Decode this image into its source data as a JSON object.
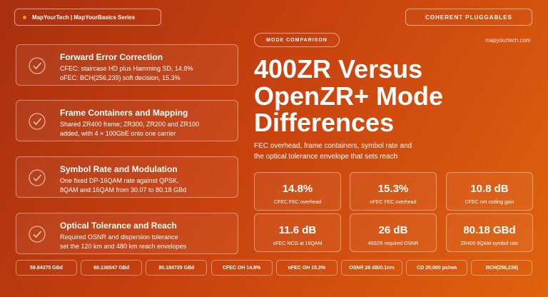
{
  "header": {
    "series": "MapYourTech | MapYourBasics Series",
    "category": "COHERENT PLUGGABLES",
    "website": "mapyourtech.com",
    "tag": "MODE COMPARISON",
    "title_lines": [
      "400ZR Versus",
      "OpenZR+ Mode",
      "Differences"
    ],
    "subtitle_lines": [
      "FEC overhead, frame containers, symbol rate and",
      "the optical tolerance envelope that sets reach"
    ]
  },
  "cards": [
    {
      "title": "Forward Error Correction",
      "lines": [
        "CFEC: staircase HD plus Hamming SD, 14.8%",
        "oFEC: BCH(256,239) soft decision, 15.3%"
      ]
    },
    {
      "title": "Frame Containers and Mapping",
      "lines": [
        "Shared ZR400 frame; ZR300, ZR200 and ZR100",
        "added, with 4 × 100GbE onto one carrier"
      ]
    },
    {
      "title": "Symbol Rate and Modulation",
      "lines": [
        "One fixed DP-16QAM rate against QPSK,",
        "8QAM and 16QAM from 30.07 to 80.18 GBd"
      ]
    },
    {
      "title": "Optical Tolerance and Reach",
      "lines": [
        "Required OSNR and dispersion tolerance",
        "set the 120 km and 480 km reach envelopes"
      ]
    }
  ],
  "stats": [
    {
      "value": "14.8%",
      "label": "CFEC FEC overhead"
    },
    {
      "value": "15.3%",
      "label": "oFEC FEC overhead"
    },
    {
      "value": "10.8 dB",
      "label": "CFEC net coding gain"
    },
    {
      "value": "11.6 dB",
      "label": "oFEC NCG at 16QAM"
    },
    {
      "value": "26 dB",
      "label": "400ZR required OSNR"
    },
    {
      "value": "80.18 GBd",
      "label": "ZR400 8QAM symbol rate"
    }
  ],
  "footer_chips": [
    "59.84375 GBd",
    "60.138547 GBd",
    "80.184729 GBd",
    "CFEC OH 14.8%",
    "oFEC OH 15.3%",
    "OSNR 26 dB/0.1nm",
    "CD 20,000 ps/nm",
    "BCH(256,239)"
  ]
}
